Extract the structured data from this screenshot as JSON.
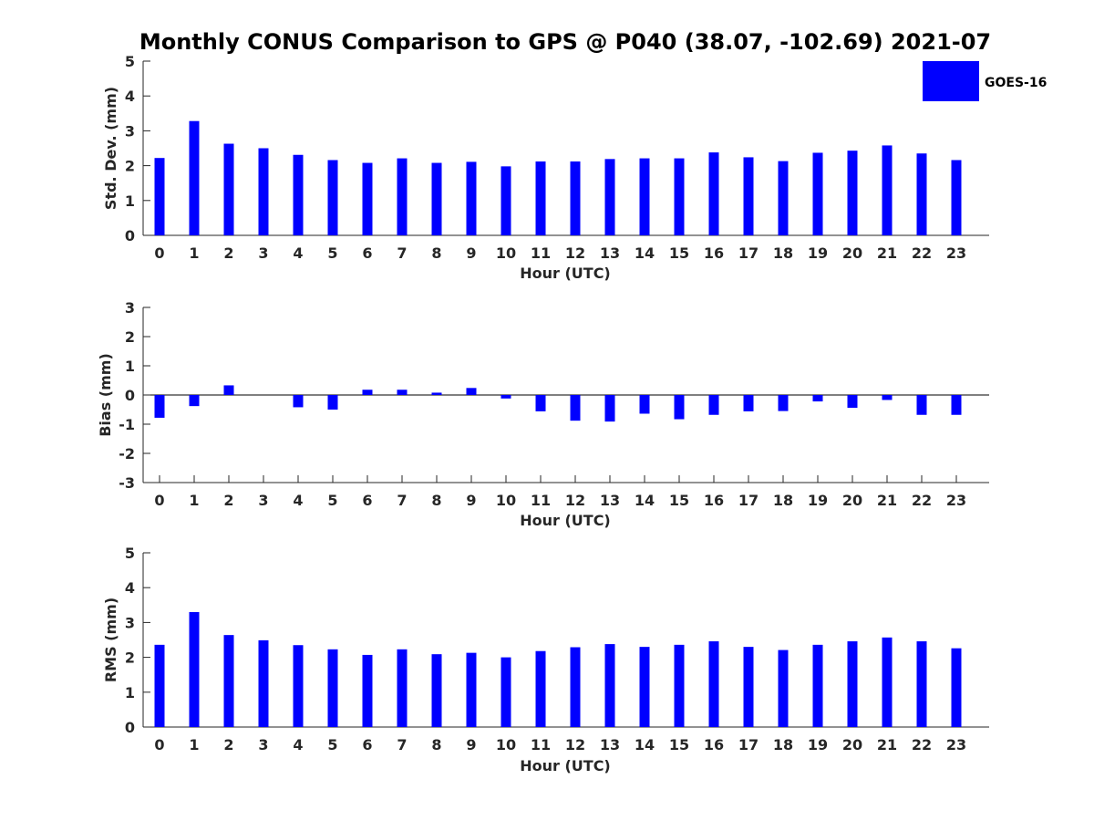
{
  "title": "Monthly CONUS Comparison to GPS @ P040 (38.07, -102.69) 2021-07",
  "legend": {
    "label": "GOES-16",
    "color": "#0000ff"
  },
  "chart_data": [
    {
      "type": "bar",
      "name": "std-dev",
      "title": "Monthly CONUS Comparison to GPS @ P040 (38.07, -102.69) 2021-07",
      "xlabel": "Hour (UTC)",
      "ylabel": "Std. Dev. (mm)",
      "ylim": [
        0,
        5
      ],
      "yticks": [
        "0",
        "1",
        "2",
        "3",
        "4",
        "5"
      ],
      "categories": [
        "0",
        "1",
        "2",
        "3",
        "4",
        "5",
        "6",
        "7",
        "8",
        "9",
        "10",
        "11",
        "12",
        "13",
        "14",
        "15",
        "16",
        "17",
        "18",
        "19",
        "20",
        "21",
        "22",
        "23"
      ],
      "series": [
        {
          "name": "GOES-16",
          "color": "#0000ff",
          "values": [
            2.22,
            3.28,
            2.63,
            2.5,
            2.31,
            2.16,
            2.08,
            2.21,
            2.08,
            2.11,
            1.98,
            2.12,
            2.12,
            2.19,
            2.21,
            2.21,
            2.38,
            2.24,
            2.13,
            2.37,
            2.43,
            2.58,
            2.35,
            2.16
          ]
        }
      ]
    },
    {
      "type": "bar",
      "name": "bias",
      "xlabel": "Hour (UTC)",
      "ylabel": "Bias (mm)",
      "ylim": [
        -3,
        3
      ],
      "yticks": [
        "-3",
        "-2",
        "-1",
        "0",
        "1",
        "2",
        "3"
      ],
      "categories": [
        "0",
        "1",
        "2",
        "3",
        "4",
        "5",
        "6",
        "7",
        "8",
        "9",
        "10",
        "11",
        "12",
        "13",
        "14",
        "15",
        "16",
        "17",
        "18",
        "19",
        "20",
        "21",
        "22",
        "23"
      ],
      "series": [
        {
          "name": "GOES-16",
          "color": "#0000ff",
          "values": [
            -0.78,
            -0.38,
            0.33,
            0.0,
            -0.42,
            -0.5,
            0.18,
            0.18,
            0.08,
            0.24,
            -0.12,
            -0.56,
            -0.88,
            -0.91,
            -0.64,
            -0.83,
            -0.68,
            -0.56,
            -0.55,
            -0.22,
            -0.44,
            -0.17,
            -0.68,
            -0.68
          ]
        }
      ]
    },
    {
      "type": "bar",
      "name": "rms",
      "xlabel": "Hour (UTC)",
      "ylabel": "RMS (mm)",
      "ylim": [
        0,
        5
      ],
      "yticks": [
        "0",
        "1",
        "2",
        "3",
        "4",
        "5"
      ],
      "categories": [
        "0",
        "1",
        "2",
        "3",
        "4",
        "5",
        "6",
        "7",
        "8",
        "9",
        "10",
        "11",
        "12",
        "13",
        "14",
        "15",
        "16",
        "17",
        "18",
        "19",
        "20",
        "21",
        "22",
        "23"
      ],
      "series": [
        {
          "name": "GOES-16",
          "color": "#0000ff",
          "values": [
            2.36,
            3.3,
            2.64,
            2.49,
            2.35,
            2.23,
            2.07,
            2.23,
            2.09,
            2.13,
            2.0,
            2.18,
            2.29,
            2.38,
            2.3,
            2.36,
            2.46,
            2.3,
            2.21,
            2.36,
            2.46,
            2.57,
            2.46,
            2.26
          ]
        }
      ]
    }
  ]
}
